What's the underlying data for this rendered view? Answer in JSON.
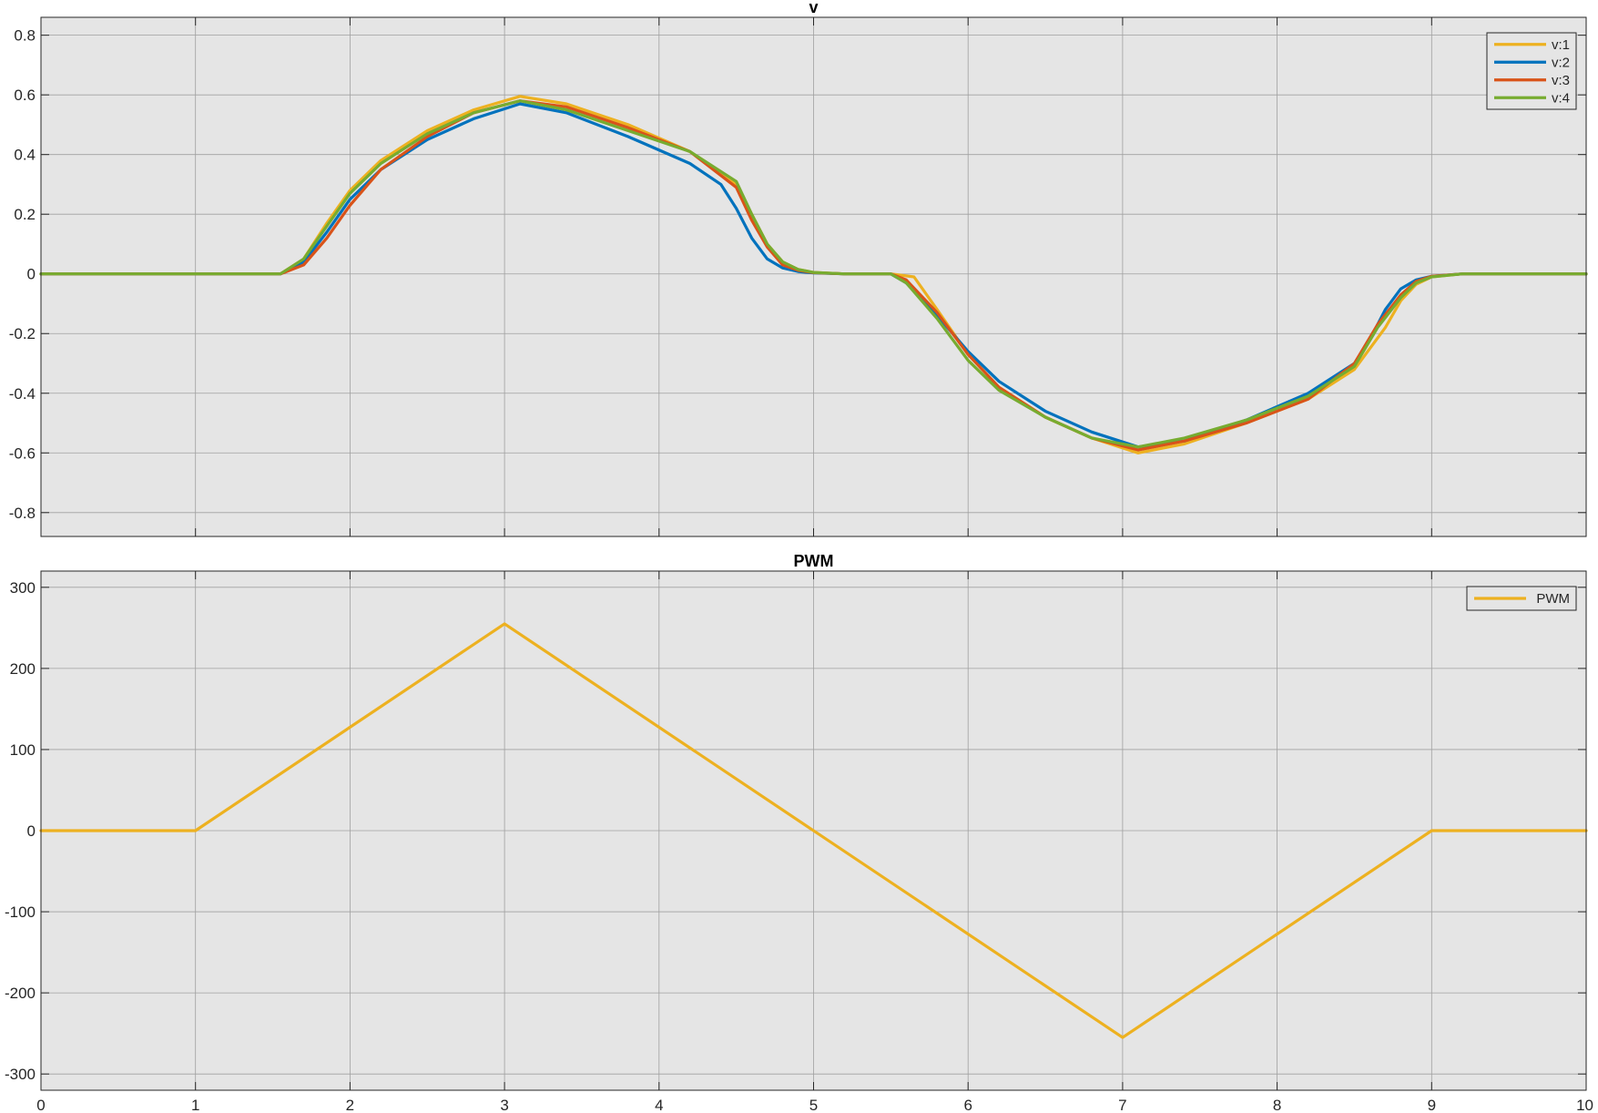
{
  "chart_data": [
    {
      "type": "line",
      "title": "v",
      "xlabel": "",
      "ylabel": "",
      "xlim": [
        0,
        10
      ],
      "ylim": [
        -0.88,
        0.86
      ],
      "xticks": [
        0,
        1,
        2,
        3,
        4,
        5,
        6,
        7,
        8,
        9,
        10
      ],
      "xtick_labels_shown": false,
      "yticks": [
        -0.8,
        -0.6,
        -0.4,
        -0.2,
        0,
        0.2,
        0.4,
        0.6,
        0.8
      ],
      "ytick_labels": [
        "-0.8",
        "-0.6",
        "-0.4",
        "-0.2",
        "0",
        "0.2",
        "0.4",
        "0.6",
        "0.8"
      ],
      "grid": true,
      "legend": "top-right",
      "series": [
        {
          "name": "v:1",
          "color": "#EDB120",
          "x": [
            0,
            1.55,
            1.7,
            1.85,
            2.0,
            2.2,
            2.5,
            2.8,
            3.1,
            3.4,
            3.8,
            4.2,
            4.5,
            4.6,
            4.7,
            4.8,
            4.9,
            5.0,
            5.2,
            5.5,
            5.65,
            5.8,
            6.0,
            6.2,
            6.5,
            6.8,
            7.1,
            7.4,
            7.8,
            8.2,
            8.5,
            8.7,
            8.8,
            8.9,
            9.0,
            9.2,
            10
          ],
          "y": [
            0,
            0,
            0.05,
            0.17,
            0.28,
            0.38,
            0.48,
            0.55,
            0.595,
            0.57,
            0.5,
            0.41,
            0.3,
            0.2,
            0.1,
            0.04,
            0.015,
            0.005,
            0,
            0,
            -0.01,
            -0.12,
            -0.27,
            -0.38,
            -0.48,
            -0.55,
            -0.6,
            -0.57,
            -0.5,
            -0.42,
            -0.32,
            -0.18,
            -0.09,
            -0.035,
            -0.01,
            0,
            0
          ]
        },
        {
          "name": "v:2",
          "color": "#0072BD",
          "x": [
            0,
            1.55,
            1.7,
            1.85,
            2.0,
            2.2,
            2.5,
            2.8,
            3.1,
            3.4,
            3.8,
            4.2,
            4.4,
            4.5,
            4.6,
            4.7,
            4.8,
            4.9,
            5.0,
            5.2,
            5.5,
            5.6,
            5.8,
            6.0,
            6.2,
            6.5,
            6.8,
            7.1,
            7.4,
            7.8,
            8.2,
            8.5,
            8.6,
            8.7,
            8.8,
            8.9,
            9.0,
            9.2,
            10
          ],
          "y": [
            0,
            0,
            0.04,
            0.14,
            0.25,
            0.35,
            0.45,
            0.52,
            0.57,
            0.54,
            0.46,
            0.37,
            0.3,
            0.22,
            0.12,
            0.05,
            0.02,
            0.008,
            0.003,
            0,
            0,
            -0.03,
            -0.14,
            -0.26,
            -0.36,
            -0.46,
            -0.53,
            -0.58,
            -0.56,
            -0.49,
            -0.4,
            -0.3,
            -0.22,
            -0.12,
            -0.05,
            -0.02,
            -0.008,
            0,
            0
          ]
        },
        {
          "name": "v:3",
          "color": "#D95319",
          "x": [
            0,
            1.55,
            1.7,
            1.85,
            2.0,
            2.2,
            2.5,
            2.8,
            3.1,
            3.4,
            3.8,
            4.2,
            4.5,
            4.6,
            4.7,
            4.8,
            4.9,
            5.0,
            5.2,
            5.5,
            5.6,
            5.8,
            6.0,
            6.2,
            6.5,
            6.8,
            7.1,
            7.4,
            7.8,
            8.2,
            8.5,
            8.65,
            8.8,
            8.9,
            9.0,
            9.2,
            10
          ],
          "y": [
            0,
            0,
            0.03,
            0.12,
            0.23,
            0.35,
            0.46,
            0.54,
            0.58,
            0.56,
            0.49,
            0.41,
            0.29,
            0.18,
            0.09,
            0.03,
            0.012,
            0.004,
            0,
            0,
            -0.02,
            -0.13,
            -0.27,
            -0.38,
            -0.48,
            -0.55,
            -0.59,
            -0.56,
            -0.5,
            -0.42,
            -0.3,
            -0.17,
            -0.07,
            -0.025,
            -0.008,
            0,
            0
          ]
        },
        {
          "name": "v:4",
          "color": "#77AC30",
          "x": [
            0,
            1.55,
            1.7,
            1.85,
            2.0,
            2.2,
            2.5,
            2.8,
            3.1,
            3.4,
            3.8,
            4.2,
            4.5,
            4.6,
            4.7,
            4.8,
            4.9,
            5.0,
            5.2,
            5.5,
            5.6,
            5.8,
            6.0,
            6.2,
            6.5,
            6.8,
            7.1,
            7.4,
            7.8,
            8.2,
            8.5,
            8.65,
            8.8,
            8.9,
            9.0,
            9.2,
            10
          ],
          "y": [
            0,
            0,
            0.05,
            0.16,
            0.27,
            0.37,
            0.47,
            0.54,
            0.58,
            0.55,
            0.48,
            0.41,
            0.31,
            0.2,
            0.1,
            0.04,
            0.015,
            0.005,
            0,
            0,
            -0.03,
            -0.15,
            -0.29,
            -0.39,
            -0.48,
            -0.55,
            -0.58,
            -0.55,
            -0.49,
            -0.41,
            -0.31,
            -0.18,
            -0.08,
            -0.03,
            -0.01,
            0,
            0
          ]
        }
      ]
    },
    {
      "type": "line",
      "title": "PWM",
      "xlabel": "",
      "ylabel": "",
      "xlim": [
        0,
        10
      ],
      "ylim": [
        -320,
        320
      ],
      "xticks": [
        0,
        1,
        2,
        3,
        4,
        5,
        6,
        7,
        8,
        9,
        10
      ],
      "xtick_labels": [
        "0",
        "1",
        "2",
        "3",
        "4",
        "5",
        "6",
        "7",
        "8",
        "9",
        "10"
      ],
      "yticks": [
        -300,
        -200,
        -100,
        0,
        100,
        200,
        300
      ],
      "ytick_labels": [
        "-300",
        "-200",
        "-100",
        "0",
        "100",
        "200",
        "300"
      ],
      "grid": true,
      "legend": "top-right",
      "series": [
        {
          "name": "PWM",
          "color": "#EDB120",
          "x": [
            0,
            1,
            3,
            7,
            9,
            10
          ],
          "y": [
            0,
            0,
            255,
            -255,
            0,
            0
          ]
        }
      ]
    }
  ],
  "style": {
    "axes_background": "#E5E5E5",
    "grid_color": "#A0A0A0",
    "axis_color": "#262626"
  }
}
